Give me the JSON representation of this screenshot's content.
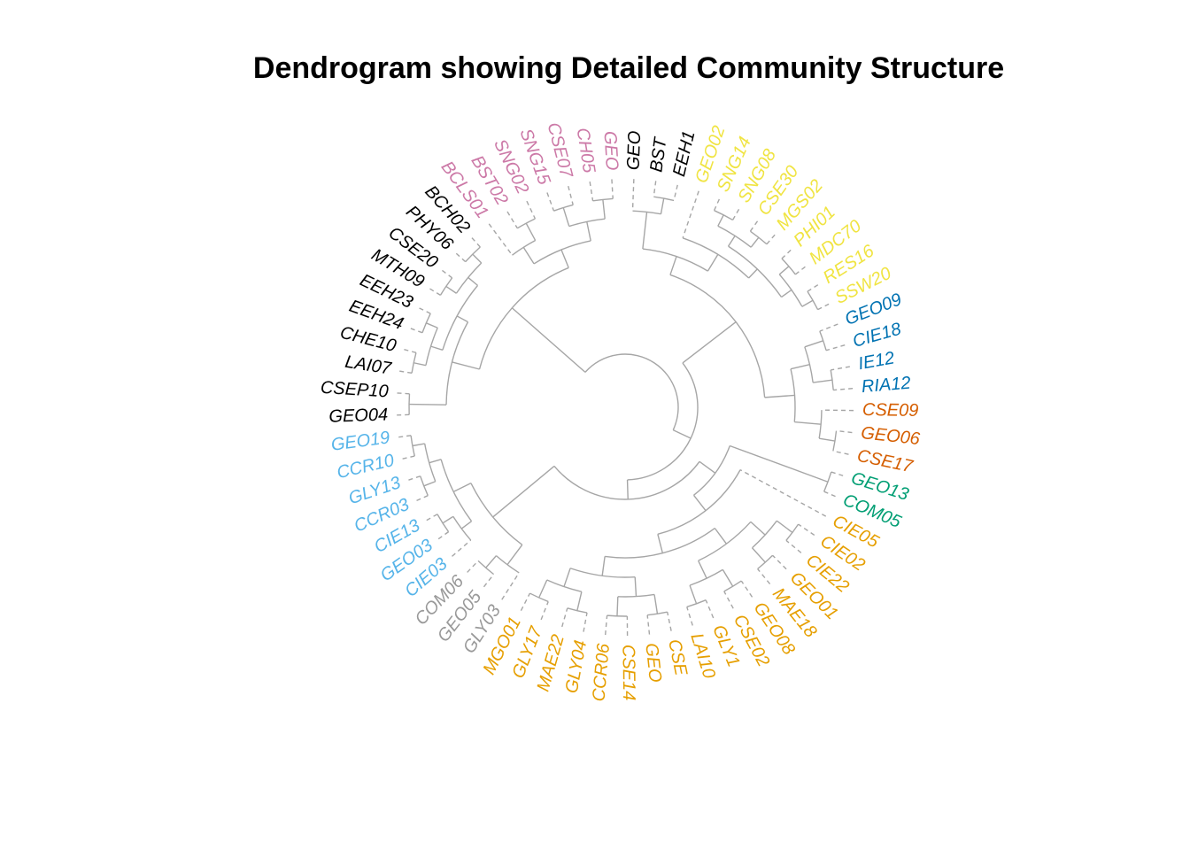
{
  "title": "Dendrogram showing Detailed Community Structure",
  "chart_data": {
    "type": "circular-dendrogram",
    "branch_color": "#a6a6a6",
    "clusters": [
      {
        "color": "#56B4E9",
        "leaves": [
          "GEO19",
          "CCR10",
          "GLY13",
          "CCR03",
          "CIE13",
          "GEO03",
          "CIE03"
        ]
      },
      {
        "color": "#999999",
        "leaves": [
          "COM06",
          "GEO05",
          "GLY03"
        ]
      },
      {
        "color": "#E69F00",
        "leaves": [
          "MGO01",
          "GLY17",
          "MAE22",
          "GLY04",
          "CCR06",
          "CSE14",
          "GEO",
          "CSE",
          "LAI10",
          "GLY1",
          "CSE02",
          "GEO08",
          "MAE18",
          "GEO01",
          "CIE22",
          "CIE02",
          "CIE05"
        ]
      },
      {
        "color": "#009E73",
        "leaves": [
          "COM05",
          "GEO13"
        ]
      },
      {
        "color": "#D55E00",
        "leaves": [
          "CSE17",
          "GEO06",
          "CSE09"
        ]
      },
      {
        "color": "#0072B2",
        "leaves": [
          "RIA12",
          "IE12",
          "CIE18",
          "GEO09"
        ]
      },
      {
        "color": "#F0E442",
        "leaves": [
          "SSW20",
          "RES16",
          "MDC70",
          "PHI01",
          "MGS02",
          "CSE30",
          "SNG08",
          "SNG14",
          "GEO02"
        ]
      },
      {
        "color": "#000000",
        "leaves": [
          "EEH1",
          "BST",
          "GEO"
        ]
      },
      {
        "color": "#CC79A7",
        "leaves": [
          "GEO",
          "CH05",
          "CSE07",
          "SNG15",
          "SNG02",
          "BST02",
          "BCLS01"
        ]
      },
      {
        "color": "#000000",
        "leaves": [
          "BCH02",
          "PHY06",
          "CSE20",
          "MTH09",
          "EEH23",
          "EEH24",
          "CHE10",
          "LAI07",
          "CSEP10",
          "GEO04"
        ]
      }
    ]
  }
}
